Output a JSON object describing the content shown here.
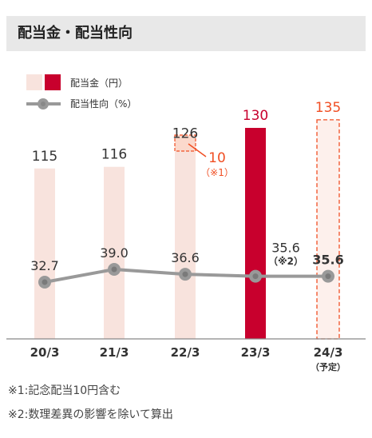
{
  "header": {
    "title": "配当金・配当性向"
  },
  "legend": {
    "dividend_label": "配当金（円）",
    "payout_label": "配当性向（%）"
  },
  "colors": {
    "bar_past": "#f8e3dd",
    "bar_current": "#c8002d",
    "bar_forecast_border": "#f04e23",
    "forecast_text": "#f04e23",
    "line": "#999999",
    "marker_fill": "#999999",
    "axis": "#888888"
  },
  "chart_data": {
    "type": "bar",
    "categories": [
      "20/3",
      "21/3",
      "22/3",
      "23/3",
      "24/3"
    ],
    "category_sublabels": [
      "",
      "",
      "",
      "",
      "（予定）"
    ],
    "dividend_label_text": [
      "115",
      "116",
      "126",
      "130",
      "135"
    ],
    "series": [
      {
        "name": "配当金（円）",
        "type": "bar",
        "values": [
          115,
          116,
          126,
          130,
          135
        ],
        "styles": [
          "past",
          "past",
          "past",
          "current",
          "forecast"
        ]
      },
      {
        "name": "配当性向（%）",
        "type": "line",
        "values": [
          32.7,
          39.0,
          36.6,
          35.6,
          35.6
        ]
      }
    ],
    "payout_label_text": [
      "32.7",
      "39.0",
      "36.6",
      "35.6",
      "35.6"
    ],
    "annotations": [
      {
        "category_index": 2,
        "label": "10",
        "note": "（※1）",
        "type": "commemorative-dividend-box"
      },
      {
        "category_index": 3,
        "label": "（※2）",
        "type": "payout-note"
      }
    ],
    "ylim": [
      0,
      140
    ],
    "grid": false,
    "legend_position": "top-left"
  },
  "notes": [
    "※1:記念配当10円含む",
    "※2:数理差異の影響を除いて算出"
  ]
}
